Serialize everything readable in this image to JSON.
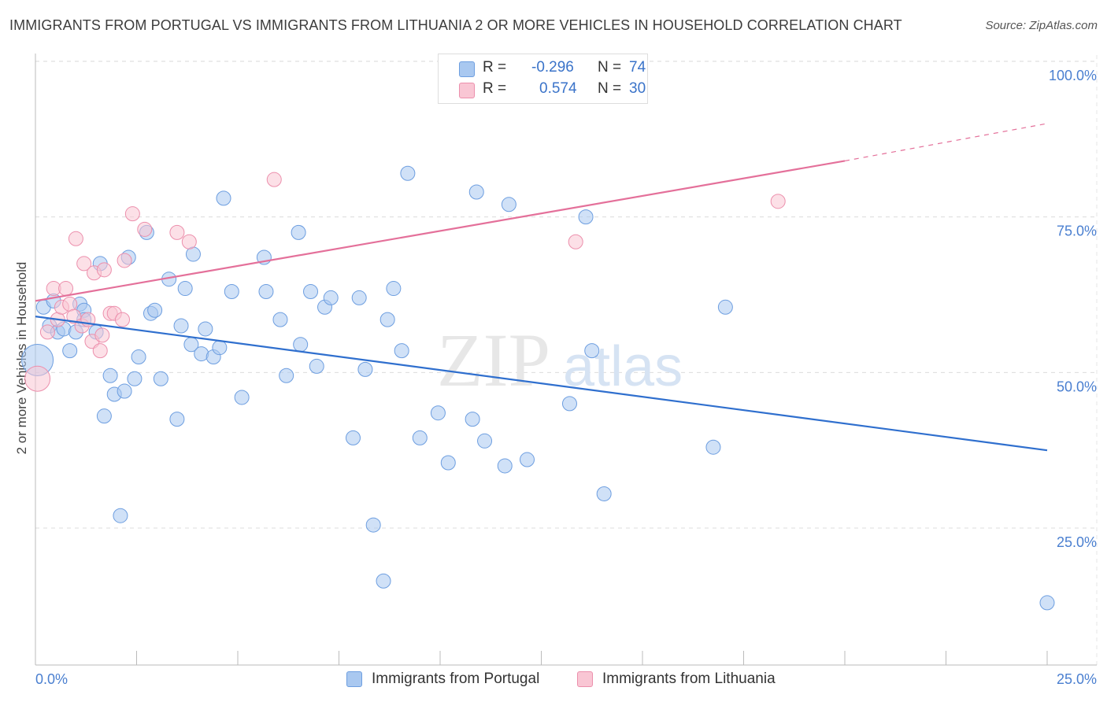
{
  "title": "IMMIGRANTS FROM PORTUGAL VS IMMIGRANTS FROM LITHUANIA 2 OR MORE VEHICLES IN HOUSEHOLD CORRELATION CHART",
  "source": "Source: ZipAtlas.com",
  "watermark": {
    "zip": "ZIP",
    "atlas": "atlas"
  },
  "legend": {
    "r_label": "R =",
    "n_label": "N =",
    "rows": [
      {
        "r": "-0.296",
        "n": "74",
        "color": "#a9c8f0",
        "border": "#6d9ee0"
      },
      {
        "r": "0.574",
        "n": "30",
        "color": "#f9c6d4",
        "border": "#ec8fac"
      }
    ]
  },
  "chart_data": {
    "type": "scatter",
    "xlabel": "",
    "ylabel": "2 or more Vehicles in Household",
    "xlim": [
      0,
      25
    ],
    "ylim": [
      3,
      101
    ],
    "x_ticks": [
      "0.0%",
      "25.0%"
    ],
    "y_ticks": [
      {
        "value": 100,
        "label": "100.0%"
      },
      {
        "value": 75,
        "label": "75.0%"
      },
      {
        "value": 50,
        "label": "50.0%"
      },
      {
        "value": 25,
        "label": "25.0%"
      }
    ],
    "grid": true,
    "series": [
      {
        "name": "Immigrants from Portugal",
        "color": "#a9c8f0",
        "border": "#6d9ee0",
        "trend": {
          "x": [
            0,
            25
          ],
          "y": [
            59,
            37.5
          ],
          "color": "#2f6fce"
        },
        "points": [
          [
            0.05,
            52,
            20
          ],
          [
            0.2,
            60.5,
            9
          ],
          [
            0.35,
            57.5,
            9
          ],
          [
            0.45,
            61.5,
            9
          ],
          [
            0.55,
            56.5,
            9
          ],
          [
            0.7,
            57,
            9
          ],
          [
            0.85,
            53.5,
            9
          ],
          [
            1.0,
            56.5,
            9
          ],
          [
            1.1,
            61,
            9
          ],
          [
            1.2,
            60,
            9
          ],
          [
            1.2,
            58.5,
            9
          ],
          [
            1.5,
            56.5,
            9
          ],
          [
            1.6,
            67.5,
            9
          ],
          [
            1.7,
            43,
            9
          ],
          [
            1.85,
            49.5,
            9
          ],
          [
            1.95,
            46.5,
            9
          ],
          [
            2.1,
            27,
            9
          ],
          [
            2.2,
            47,
            9
          ],
          [
            2.3,
            68.5,
            9
          ],
          [
            2.45,
            49,
            9
          ],
          [
            2.55,
            52.5,
            9
          ],
          [
            2.75,
            72.5,
            9
          ],
          [
            2.85,
            59.5,
            9
          ],
          [
            2.95,
            60,
            9
          ],
          [
            3.1,
            49,
            9
          ],
          [
            3.3,
            65,
            9
          ],
          [
            3.5,
            42.5,
            9
          ],
          [
            3.6,
            57.5,
            9
          ],
          [
            3.7,
            63.5,
            9
          ],
          [
            3.85,
            54.5,
            9
          ],
          [
            3.9,
            69,
            9
          ],
          [
            4.1,
            53,
            9
          ],
          [
            4.2,
            57,
            9
          ],
          [
            4.4,
            52.5,
            9
          ],
          [
            4.55,
            54,
            9
          ],
          [
            4.65,
            78,
            9
          ],
          [
            4.85,
            63,
            9
          ],
          [
            5.1,
            46,
            9
          ],
          [
            5.65,
            68.5,
            9
          ],
          [
            5.7,
            63,
            9
          ],
          [
            6.05,
            58.5,
            9
          ],
          [
            6.2,
            49.5,
            9
          ],
          [
            6.5,
            72.5,
            9
          ],
          [
            6.55,
            54.5,
            9
          ],
          [
            6.8,
            63,
            9
          ],
          [
            6.95,
            51,
            9
          ],
          [
            7.15,
            60.5,
            9
          ],
          [
            7.3,
            62,
            9
          ],
          [
            7.85,
            39.5,
            9
          ],
          [
            8.0,
            62,
            9
          ],
          [
            8.15,
            50.5,
            9
          ],
          [
            8.35,
            25.5,
            9
          ],
          [
            8.6,
            16.5,
            9
          ],
          [
            8.7,
            58.5,
            9
          ],
          [
            8.85,
            63.5,
            9
          ],
          [
            9.05,
            53.5,
            9
          ],
          [
            9.2,
            82,
            9
          ],
          [
            9.5,
            39.5,
            9
          ],
          [
            9.95,
            43.5,
            9
          ],
          [
            10.2,
            35.5,
            9
          ],
          [
            10.8,
            42.5,
            9
          ],
          [
            10.9,
            79,
            9
          ],
          [
            11.1,
            39,
            9
          ],
          [
            11.6,
            35,
            9
          ],
          [
            11.7,
            77,
            9
          ],
          [
            12.15,
            36,
            9
          ],
          [
            13.2,
            45,
            9
          ],
          [
            13.6,
            75,
            9
          ],
          [
            13.75,
            53.5,
            9
          ],
          [
            14.05,
            30.5,
            9
          ],
          [
            16.75,
            38,
            9
          ],
          [
            17.05,
            60.5,
            9
          ],
          [
            25.0,
            13,
            9
          ]
        ]
      },
      {
        "name": "Immigrants from Lithuania",
        "color": "#f9c6d4",
        "border": "#ec8fac",
        "trend": {
          "x": [
            0,
            20
          ],
          "y": [
            61.5,
            84
          ],
          "dash_to": {
            "x": 25,
            "y": 90
          },
          "color": "#e4709a"
        },
        "points": [
          [
            0.05,
            49,
            16
          ],
          [
            0.3,
            56.5,
            9
          ],
          [
            0.45,
            63.5,
            9
          ],
          [
            0.55,
            58.5,
            9
          ],
          [
            0.65,
            60.5,
            9
          ],
          [
            0.75,
            63.5,
            9
          ],
          [
            0.85,
            61,
            9
          ],
          [
            0.95,
            59,
            9
          ],
          [
            1.0,
            71.5,
            9
          ],
          [
            1.15,
            57.5,
            9
          ],
          [
            1.2,
            67.5,
            9
          ],
          [
            1.3,
            58.5,
            9
          ],
          [
            1.4,
            55,
            9
          ],
          [
            1.45,
            66,
            9
          ],
          [
            1.6,
            53.5,
            9
          ],
          [
            1.65,
            56,
            9
          ],
          [
            1.7,
            66.5,
            9
          ],
          [
            1.85,
            59.5,
            9
          ],
          [
            1.95,
            59.5,
            9
          ],
          [
            2.15,
            58.5,
            9
          ],
          [
            2.2,
            68,
            9
          ],
          [
            2.4,
            75.5,
            9
          ],
          [
            2.7,
            73,
            9
          ],
          [
            3.5,
            72.5,
            9
          ],
          [
            3.8,
            71,
            9
          ],
          [
            5.9,
            81,
            9
          ],
          [
            13.35,
            71,
            9
          ],
          [
            18.35,
            77.5,
            9
          ]
        ]
      }
    ]
  }
}
